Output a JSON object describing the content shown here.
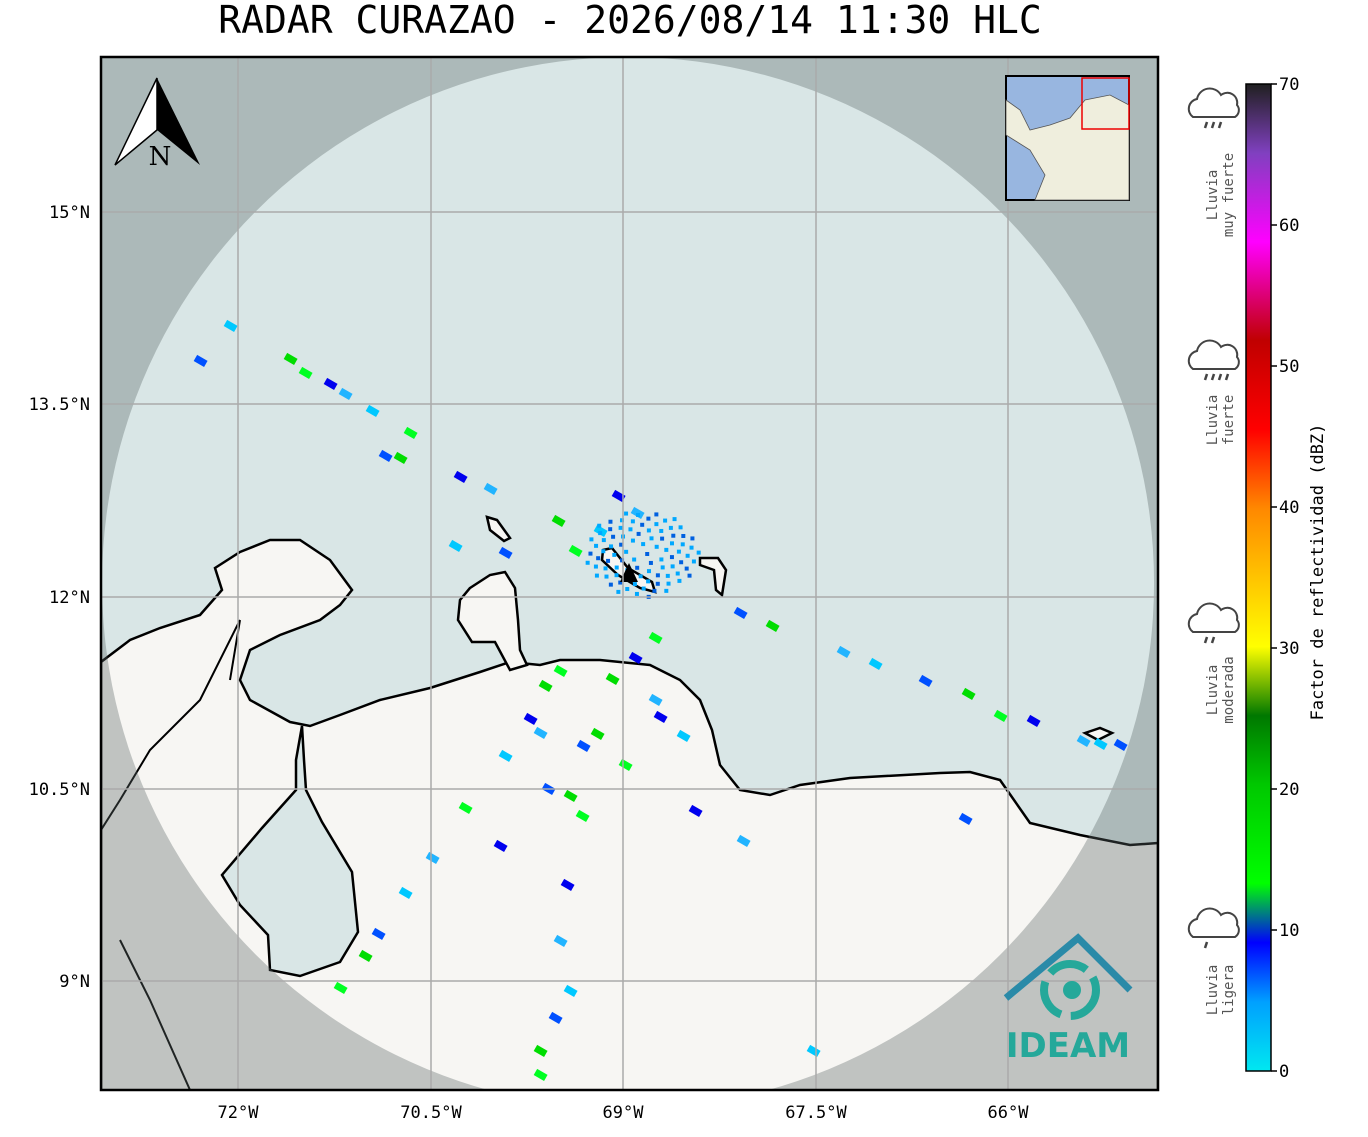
{
  "title": "RADAR CURAZAO - 2026/08/14 11:30 HLC",
  "map": {
    "lat_labels": [
      "15°N",
      "13.5°N",
      "12°N",
      "10.5°N",
      "9°N"
    ],
    "lon_labels": [
      "72°W",
      "70.5°W",
      "69°W",
      "67.5°W",
      "66°W"
    ],
    "north_label": "N",
    "logo_text": "IDEAM"
  },
  "colorbar": {
    "label": "Factor de reflectividad (dBZ)",
    "ticks": [
      0,
      10,
      20,
      30,
      40,
      50,
      60,
      70
    ]
  },
  "legend": [
    {
      "lines": [
        "Lluvia",
        "muy fuerte"
      ]
    },
    {
      "lines": [
        "Lluvia",
        "fuerte"
      ]
    },
    {
      "lines": [
        "Lluvia",
        "moderada"
      ]
    },
    {
      "lines": [
        "Lluvia",
        "ligera"
      ]
    }
  ]
}
